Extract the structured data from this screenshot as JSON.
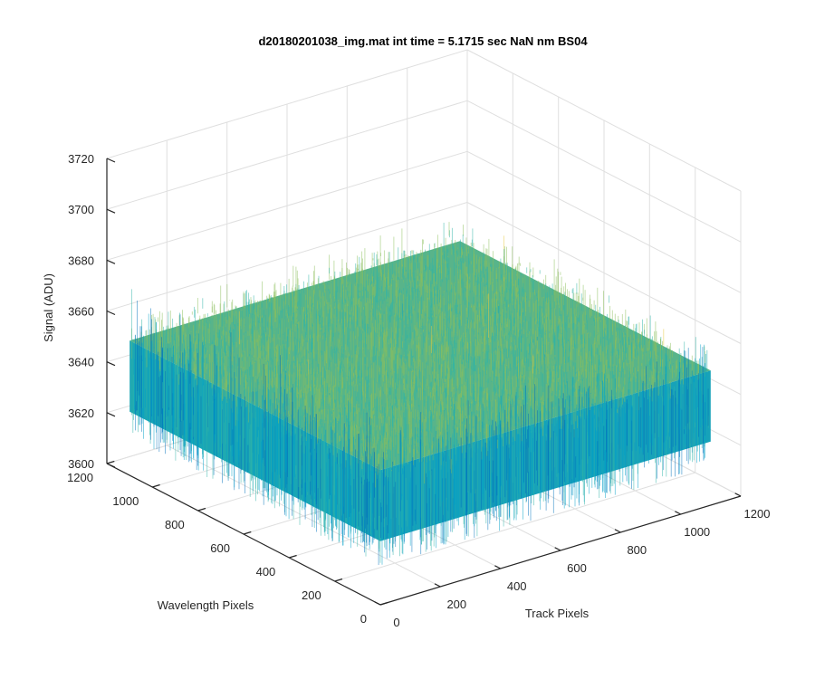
{
  "chart_data": {
    "type": "surface",
    "title": "d20180201038_img.mat int time = 5.1715 sec  NaN nm BS04",
    "xlabel": "Track Pixels",
    "ylabel": "Wavelength Pixels",
    "zlabel": "Signal (ADU)",
    "xlim": [
      0,
      1200
    ],
    "ylim": [
      0,
      1200
    ],
    "zlim": [
      3600,
      3720
    ],
    "x_ticks": [
      "0",
      "200",
      "400",
      "600",
      "800",
      "1000",
      "1200"
    ],
    "y_ticks": [
      "0",
      "200",
      "400",
      "600",
      "800",
      "1000",
      "1200"
    ],
    "z_ticks": [
      "3600",
      "3620",
      "3640",
      "3660",
      "3680",
      "3700",
      "3720"
    ],
    "surface_x_range": [
      0,
      1100
    ],
    "surface_y_range": [
      0,
      1100
    ],
    "signal_mean": 3653,
    "signal_noise_range": [
      3610,
      3705
    ],
    "colormap": [
      "#0072bd",
      "#00a0c8",
      "#30b4a8",
      "#8cbf5c",
      "#e8c840"
    ],
    "grid": true
  }
}
